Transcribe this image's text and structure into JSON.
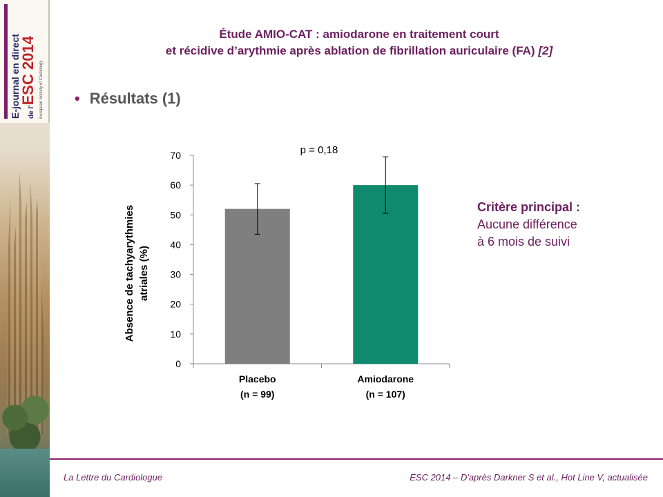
{
  "logo": {
    "line1": "E-journal en direct",
    "line2_prefix": "de l'",
    "line2": "ESC 2014",
    "line3": "European Society of Cardiology"
  },
  "title": {
    "line1": "Étude AMIO-CAT : amiodarone en traitement court",
    "line2": "et récidive d’arythmie après ablation de fibrillation auriculaire (FA)",
    "ref": "[2]"
  },
  "section": {
    "bullet": "•",
    "heading": "Résultats (1)"
  },
  "side_note": {
    "head": "Critère principal :",
    "line1": "Aucune différence",
    "line2": "à 6 mois de suivi"
  },
  "footer": {
    "left": "La Lettre du Cardiologue",
    "right": "ESC 2014 – D'après Darkner S et al., Hot Line V, actualisée"
  },
  "chart_data": {
    "type": "bar",
    "categories": [
      "Placebo",
      "Amiodarone"
    ],
    "category_sublabels": [
      "(n = 99)",
      "(n = 107)"
    ],
    "values": [
      52,
      60
    ],
    "error_bars": [
      [
        43.5,
        60.5
      ],
      [
        50.5,
        69.5
      ]
    ],
    "bar_colors": [
      "#7f7f7f",
      "#0f8a6e"
    ],
    "ylabel_lines": [
      "Absence de tachyarythmies",
      "atriales (%)"
    ],
    "ylim": [
      0,
      70
    ],
    "yticks": [
      0,
      10,
      20,
      30,
      40,
      50,
      60,
      70
    ],
    "annotation": "p = 0,18",
    "grid": false
  }
}
